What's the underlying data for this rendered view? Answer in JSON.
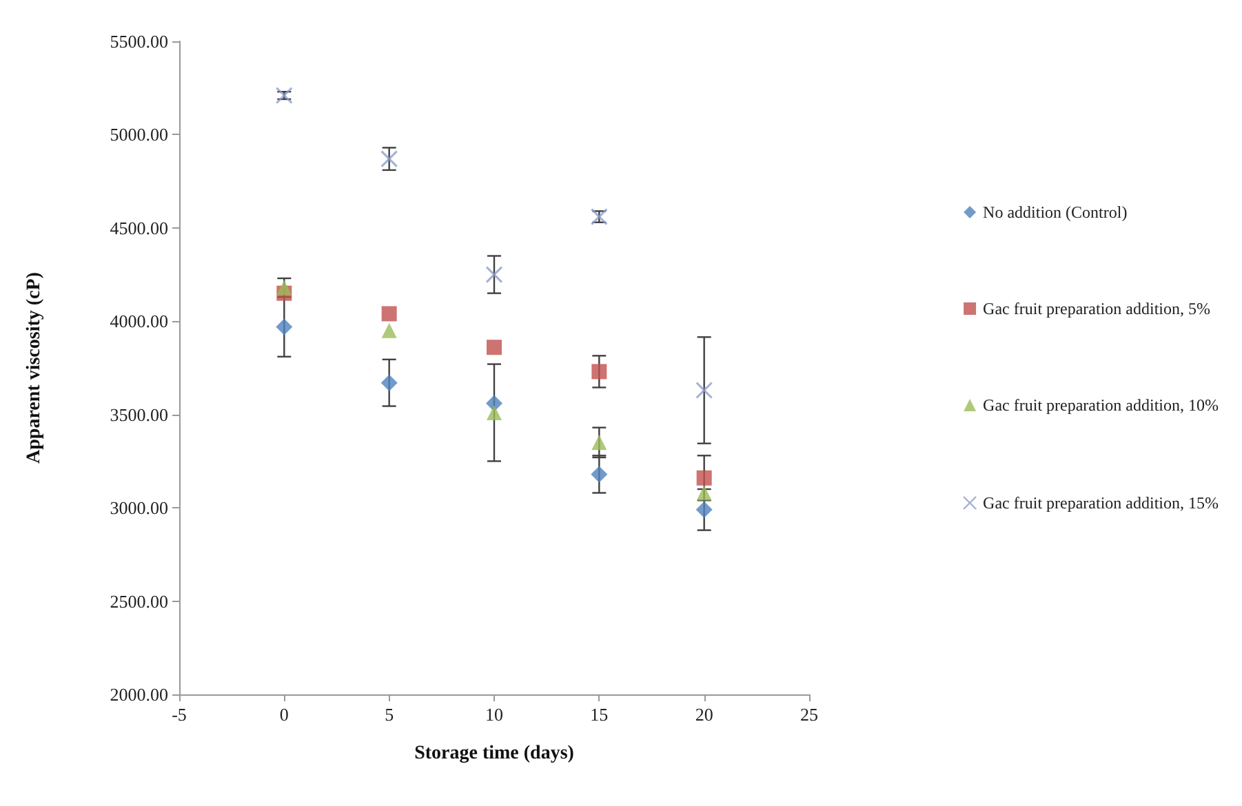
{
  "chart_data": {
    "type": "scatter",
    "xlabel": "Storage time (days)",
    "ylabel": "Apparent viscosity (cP)",
    "xlim": [
      -5,
      25
    ],
    "xticks": [
      -5,
      0,
      5,
      10,
      15,
      20,
      25
    ],
    "ylim": [
      2000,
      5500
    ],
    "yticks": [
      {
        "value": 2000,
        "label": "2000.00"
      },
      {
        "value": 2500,
        "label": "2500.00"
      },
      {
        "value": 3000,
        "label": "3000.00"
      },
      {
        "value": 3500,
        "label": "3500.00"
      },
      {
        "value": 4000,
        "label": "4000.00"
      },
      {
        "value": 4500,
        "label": "4500.00"
      },
      {
        "value": 5000,
        "label": "5000.00"
      },
      {
        "value": 5500,
        "label": "5500.00"
      }
    ],
    "x": [
      0,
      5,
      10,
      15,
      20
    ],
    "series": [
      {
        "name": "No addition (Control)",
        "color": "#4f81bd",
        "marker": "diamond",
        "values": [
          3970,
          3670,
          3560,
          3180,
          2990
        ],
        "errors": [
          160,
          125,
          null,
          100,
          110
        ]
      },
      {
        "name": "Gac fruit preparation addition, 5%",
        "color": "#c0504d",
        "marker": "square",
        "values": [
          4150,
          4040,
          3860,
          3730,
          3160
        ],
        "errors": [
          null,
          null,
          null,
          85,
          120
        ]
      },
      {
        "name": "Gac fruit preparation addition, 10%",
        "color": "#9bbb59",
        "marker": "triangle",
        "values": [
          4180,
          3950,
          3510,
          3350,
          3080
        ],
        "errors": [
          50,
          null,
          260,
          80,
          null
        ]
      },
      {
        "name": "Gac fruit preparation addition, 15%",
        "color": "#8c9ccc",
        "marker": "cross",
        "values": [
          5210,
          4870,
          4250,
          4560,
          3630
        ],
        "errors": [
          20,
          60,
          100,
          30,
          285
        ]
      }
    ],
    "grid": false,
    "legend": "right"
  }
}
